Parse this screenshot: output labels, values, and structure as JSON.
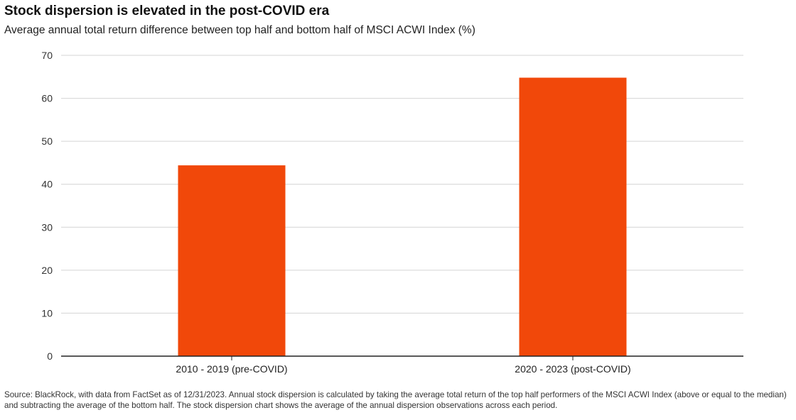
{
  "chart_data": {
    "type": "bar",
    "title": "Stock dispersion is elevated in the post-COVID era",
    "subtitle": "Average annual total return difference between top half and bottom half of MSCI ACWI Index (%)",
    "categories": [
      "2010 - 2019 (pre-COVID)",
      "2020 - 2023 (post-COVID)"
    ],
    "values": [
      44.4,
      64.8
    ],
    "xlabel": "",
    "ylabel": "",
    "ylim": [
      0,
      70
    ],
    "yticks": [
      0,
      10,
      20,
      30,
      40,
      50,
      60,
      70
    ],
    "grid": true,
    "bar_color": "#f1480a",
    "gridline_color": "#d4d4d4",
    "axis_color": "#222222"
  },
  "footer": {
    "source": "Source: BlackRock, with data from FactSet as of 12/31/2023. Annual stock dispersion is calculated by taking the average total return of the top half performers of the MSCI ACWI Index (above or equal to the median) and subtracting the average of the bottom half. The stock dispersion chart shows the average of the annual dispersion observations across each period."
  }
}
